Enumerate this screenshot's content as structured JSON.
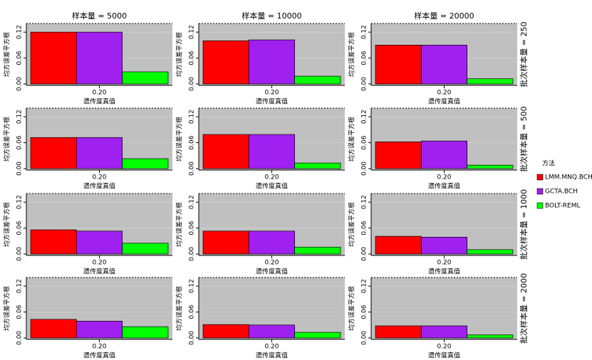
{
  "chart_data": [
    {
      "type": "bar",
      "title": "样本量 = 5000",
      "ylabel": "均方误差平方根",
      "xlabel": "遗传度真值",
      "categories": [
        "0.20"
      ],
      "legend_title": "方法",
      "series": [
        {
          "name": "LMM.MNQ.BCH",
          "color": "#ff0000",
          "values": [
            0.12
          ]
        },
        {
          "name": "GCTA.BCH",
          "color": "#a020f0",
          "values": [
            0.12
          ]
        },
        {
          "name": "BOLT-REML",
          "color": "#00ff00",
          "values": [
            0.028
          ]
        }
      ],
      "ylim": [
        0,
        0.14
      ],
      "yticks": [
        {
          "value": 0,
          "label": "0.00"
        },
        {
          "value": 0.06,
          "label": "0.06"
        },
        {
          "value": 0.12,
          "label": "0.12"
        }
      ],
      "grid": true
    },
    {
      "type": "bar",
      "title": "样本量 = 10000",
      "ylabel": "均方误差平方根",
      "xlabel": "遗传度真值",
      "categories": [
        "0.20"
      ],
      "series": [
        {
          "name": "LMM.MNQ.BCH",
          "color": "#ff0000",
          "values": [
            0.1
          ]
        },
        {
          "name": "GCTA.BCH",
          "color": "#a020f0",
          "values": [
            0.102
          ]
        },
        {
          "name": "BOLT-REML",
          "color": "#00ff00",
          "values": [
            0.018
          ]
        }
      ],
      "ylim": [
        0,
        0.14
      ],
      "yticks": [
        {
          "value": 0,
          "label": "0.00"
        },
        {
          "value": 0.06,
          "label": "0.06"
        },
        {
          "value": 0.12,
          "label": "0.12"
        }
      ],
      "grid": true
    },
    {
      "type": "bar",
      "title": "样本量 = 20000",
      "strip_label": "批次样本量 = 250",
      "ylabel": "均方误差平方根",
      "xlabel": "遗传度真值",
      "categories": [
        "0.20"
      ],
      "series": [
        {
          "name": "LMM.MNQ.BCH",
          "color": "#ff0000",
          "values": [
            0.09
          ]
        },
        {
          "name": "GCTA.BCH",
          "color": "#a020f0",
          "values": [
            0.09
          ]
        },
        {
          "name": "BOLT-REML",
          "color": "#00ff00",
          "values": [
            0.012
          ]
        }
      ],
      "ylim": [
        0,
        0.14
      ],
      "yticks": [
        {
          "value": 0,
          "label": "0.00"
        },
        {
          "value": 0.06,
          "label": "0.06"
        },
        {
          "value": 0.12,
          "label": "0.12"
        }
      ],
      "grid": true
    },
    {
      "type": "bar",
      "ylabel": "均方误差平方根",
      "xlabel": "遗传度真值",
      "categories": [
        "0.20"
      ],
      "series": [
        {
          "name": "LMM.MNQ.BCH",
          "color": "#ff0000",
          "values": [
            0.072
          ]
        },
        {
          "name": "GCTA.BCH",
          "color": "#a020f0",
          "values": [
            0.072
          ]
        },
        {
          "name": "BOLT-REML",
          "color": "#00ff00",
          "values": [
            0.023
          ]
        }
      ],
      "ylim": [
        0,
        0.14
      ],
      "yticks": [
        {
          "value": 0,
          "label": "0.00"
        },
        {
          "value": 0.06,
          "label": "0.06"
        },
        {
          "value": 0.12,
          "label": "0.12"
        }
      ],
      "grid": true
    },
    {
      "type": "bar",
      "ylabel": "均方误差平方根",
      "xlabel": "遗传度真值",
      "categories": [
        "0.20"
      ],
      "series": [
        {
          "name": "LMM.MNQ.BCH",
          "color": "#ff0000",
          "values": [
            0.079
          ]
        },
        {
          "name": "GCTA.BCH",
          "color": "#a020f0",
          "values": [
            0.079
          ]
        },
        {
          "name": "BOLT-REML",
          "color": "#00ff00",
          "values": [
            0.013
          ]
        }
      ],
      "ylim": [
        0,
        0.14
      ],
      "yticks": [
        {
          "value": 0,
          "label": "0.00"
        },
        {
          "value": 0.06,
          "label": "0.06"
        },
        {
          "value": 0.12,
          "label": "0.12"
        }
      ],
      "grid": true
    },
    {
      "type": "bar",
      "strip_label": "批次样本量 = 500",
      "ylabel": "均方误差平方根",
      "xlabel": "遗传度真值",
      "categories": [
        "0.20"
      ],
      "series": [
        {
          "name": "LMM.MNQ.BCH",
          "color": "#ff0000",
          "values": [
            0.062
          ]
        },
        {
          "name": "GCTA.BCH",
          "color": "#a020f0",
          "values": [
            0.064
          ]
        },
        {
          "name": "BOLT-REML",
          "color": "#00ff00",
          "values": [
            0.008
          ]
        }
      ],
      "ylim": [
        0,
        0.14
      ],
      "yticks": [
        {
          "value": 0,
          "label": "0.00"
        },
        {
          "value": 0.06,
          "label": "0.06"
        },
        {
          "value": 0.12,
          "label": "0.12"
        }
      ],
      "grid": true
    },
    {
      "type": "bar",
      "ylabel": "均方误差平方根",
      "xlabel": "遗传度真值",
      "categories": [
        "0.20"
      ],
      "series": [
        {
          "name": "LMM.MNQ.BCH",
          "color": "#ff0000",
          "values": [
            0.056
          ]
        },
        {
          "name": "GCTA.BCH",
          "color": "#a020f0",
          "values": [
            0.053
          ]
        },
        {
          "name": "BOLT-REML",
          "color": "#00ff00",
          "values": [
            0.025
          ]
        }
      ],
      "ylim": [
        0,
        0.14
      ],
      "yticks": [
        {
          "value": 0,
          "label": "0.00"
        },
        {
          "value": 0.06,
          "label": "0.06"
        },
        {
          "value": 0.12,
          "label": "0.12"
        }
      ],
      "grid": true
    },
    {
      "type": "bar",
      "ylabel": "均方误差平方根",
      "xlabel": "遗传度真值",
      "categories": [
        "0.20"
      ],
      "series": [
        {
          "name": "LMM.MNQ.BCH",
          "color": "#ff0000",
          "values": [
            0.053
          ]
        },
        {
          "name": "GCTA.BCH",
          "color": "#a020f0",
          "values": [
            0.053
          ]
        },
        {
          "name": "BOLT-REML",
          "color": "#00ff00",
          "values": [
            0.016
          ]
        }
      ],
      "ylim": [
        0,
        0.14
      ],
      "yticks": [
        {
          "value": 0,
          "label": "0.00"
        },
        {
          "value": 0.06,
          "label": "0.06"
        },
        {
          "value": 0.12,
          "label": "0.12"
        }
      ],
      "grid": true
    },
    {
      "type": "bar",
      "strip_label": "批次样本量 = 1000",
      "ylabel": "均方误差平方根",
      "xlabel": "遗传度真值",
      "categories": [
        "0.20"
      ],
      "series": [
        {
          "name": "LMM.MNQ.BCH",
          "color": "#ff0000",
          "values": [
            0.041
          ]
        },
        {
          "name": "GCTA.BCH",
          "color": "#a020f0",
          "values": [
            0.039
          ]
        },
        {
          "name": "BOLT-REML",
          "color": "#00ff00",
          "values": [
            0.01
          ]
        }
      ],
      "ylim": [
        0,
        0.14
      ],
      "yticks": [
        {
          "value": 0,
          "label": "0.00"
        },
        {
          "value": 0.06,
          "label": "0.06"
        },
        {
          "value": 0.12,
          "label": "0.12"
        }
      ],
      "grid": true
    },
    {
      "type": "bar",
      "ylabel": "均方误差平方根",
      "xlabel": "遗传度真值",
      "categories": [
        "0.20"
      ],
      "series": [
        {
          "name": "LMM.MNQ.BCH",
          "color": "#ff0000",
          "values": [
            0.043
          ]
        },
        {
          "name": "GCTA.BCH",
          "color": "#a020f0",
          "values": [
            0.039
          ]
        },
        {
          "name": "BOLT-REML",
          "color": "#00ff00",
          "values": [
            0.026
          ]
        }
      ],
      "ylim": [
        0,
        0.14
      ],
      "yticks": [
        {
          "value": 0,
          "label": "0.00"
        },
        {
          "value": 0.06,
          "label": "0.06"
        },
        {
          "value": 0.12,
          "label": "0.12"
        }
      ],
      "grid": true
    },
    {
      "type": "bar",
      "ylabel": "均方误差平方根",
      "xlabel": "遗传度真值",
      "categories": [
        "0.20"
      ],
      "series": [
        {
          "name": "LMM.MNQ.BCH",
          "color": "#ff0000",
          "values": [
            0.031
          ]
        },
        {
          "name": "GCTA.BCH",
          "color": "#a020f0",
          "values": [
            0.03
          ]
        },
        {
          "name": "BOLT-REML",
          "color": "#00ff00",
          "values": [
            0.013
          ]
        }
      ],
      "ylim": [
        0,
        0.14
      ],
      "yticks": [
        {
          "value": 0,
          "label": "0.00"
        },
        {
          "value": 0.06,
          "label": "0.06"
        },
        {
          "value": 0.12,
          "label": "0.12"
        }
      ],
      "grid": true
    },
    {
      "type": "bar",
      "strip_label": "批次样本量 = 2000",
      "ylabel": "均方误差平方根",
      "xlabel": "遗传度真值",
      "categories": [
        "0.20"
      ],
      "series": [
        {
          "name": "LMM.MNQ.BCH",
          "color": "#ff0000",
          "values": [
            0.028
          ]
        },
        {
          "name": "GCTA.BCH",
          "color": "#a020f0",
          "values": [
            0.028
          ]
        },
        {
          "name": "BOLT-REML",
          "color": "#00ff00",
          "values": [
            0.007
          ]
        }
      ],
      "ylim": [
        0,
        0.14
      ],
      "yticks": [
        {
          "value": 0,
          "label": "0.00"
        },
        {
          "value": 0.06,
          "label": "0.06"
        },
        {
          "value": 0.12,
          "label": "0.12"
        }
      ],
      "grid": true
    }
  ]
}
